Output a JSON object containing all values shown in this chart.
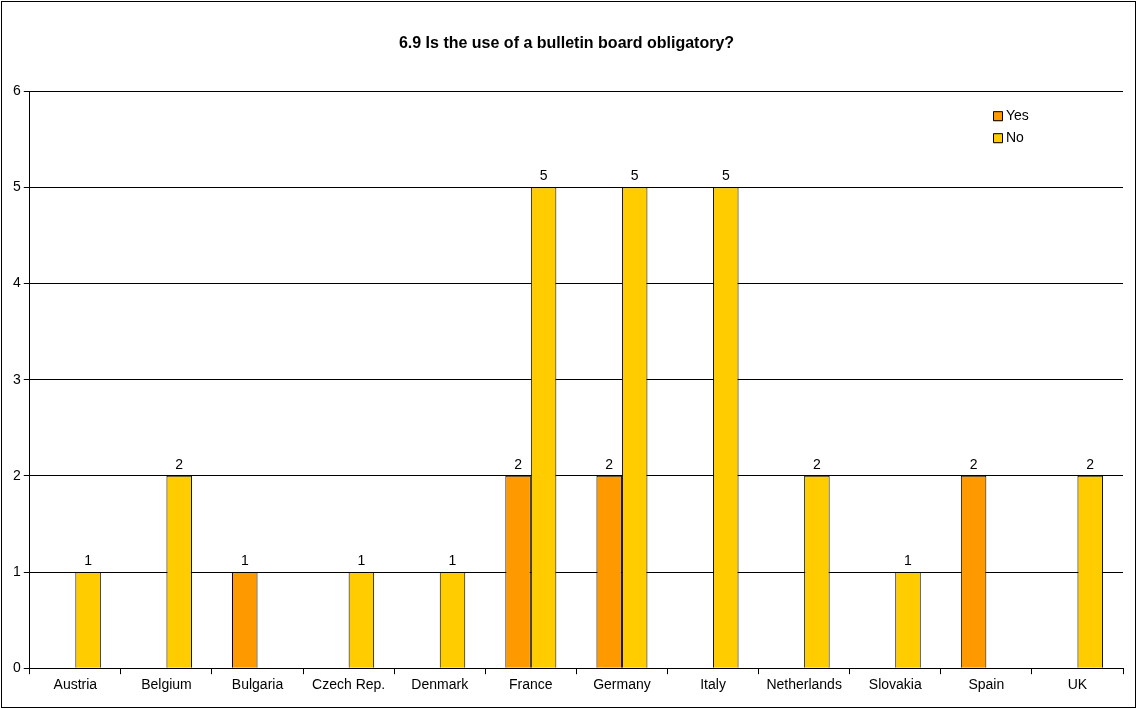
{
  "chart_data": {
    "type": "bar",
    "title": "6.9 Is the use of a bulletin board obligatory?",
    "categories": [
      "Austria",
      "Belgium",
      "Bulgaria",
      "Czech Rep.",
      "Denmark",
      "France",
      "Germany",
      "Italy",
      "Netherlands",
      "Slovakia",
      "Spain",
      "UK"
    ],
    "series": [
      {
        "name": "Yes",
        "color": "#ff9900",
        "values": [
          null,
          null,
          1,
          null,
          null,
          2,
          2,
          null,
          null,
          null,
          2,
          null
        ]
      },
      {
        "name": "No",
        "color": "#ffcc00",
        "values": [
          1,
          2,
          null,
          1,
          1,
          5,
          5,
          5,
          2,
          1,
          null,
          2
        ]
      }
    ],
    "ylim": [
      0,
      6
    ],
    "yticks": [
      0,
      1,
      2,
      3,
      4,
      5,
      6
    ],
    "grid": "y",
    "legend": "top right",
    "data_labels": true
  }
}
